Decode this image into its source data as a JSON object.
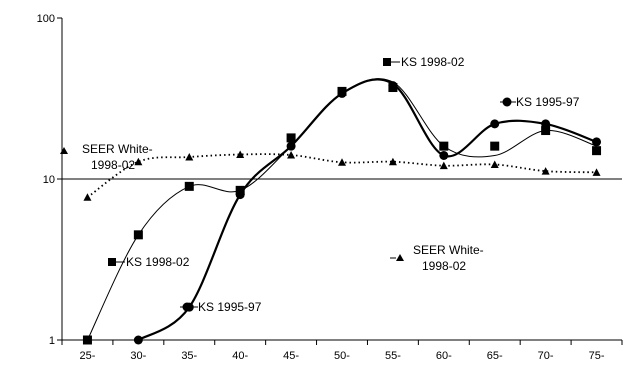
{
  "chart_data": {
    "type": "line",
    "title": "",
    "xlabel": "",
    "ylabel": "",
    "y_scale": "log",
    "ylim": [
      1,
      100
    ],
    "y_ticks": [
      1,
      10,
      100
    ],
    "y_tick_labels": [
      "1",
      "10",
      "100"
    ],
    "categories": [
      "25-",
      "30-",
      "35-",
      "40-",
      "45-",
      "50-",
      "55-",
      "60-",
      "65-",
      "70-",
      "75-"
    ],
    "grid": "horizontal line at 10",
    "legend": "none (series labelled with text annotations)",
    "series": [
      {
        "key": "ks9802_fit",
        "marker": "none",
        "line": "thin",
        "values": [
          1.0,
          4.5,
          9.0,
          8.5,
          16,
          34,
          40,
          16,
          14,
          20,
          16
        ]
      },
      {
        "key": "ks9802_obs",
        "marker": "square",
        "line": "none",
        "values": [
          1.0,
          4.5,
          9.0,
          8.5,
          18,
          35,
          37,
          16,
          16,
          20,
          15
        ]
      },
      {
        "key": "ks9597_fit",
        "marker": "none",
        "line": "thick",
        "values": [
          null,
          1.0,
          1.6,
          8.0,
          16,
          34,
          39,
          14,
          22,
          22,
          17
        ]
      },
      {
        "key": "ks9597_obs",
        "marker": "circle",
        "line": "none",
        "values": [
          null,
          1.0,
          1.6,
          8.0,
          16,
          34,
          38,
          14,
          22,
          22,
          17
        ]
      },
      {
        "key": "seer_white",
        "marker": "triangle",
        "line": "dotted",
        "values": [
          7.7,
          12.8,
          13.7,
          14.2,
          14.1,
          12.7,
          12.8,
          12.1,
          12.3,
          11.2,
          11.0
        ]
      }
    ],
    "annotations": {
      "seer_left_line1": "SEER White-",
      "seer_left_line2": "1998-02",
      "seer_right_line1": "SEER White-",
      "seer_right_line2": "1998-02",
      "ks9802_top": "KS 1998-02",
      "ks9802_left": "KS 1998-02",
      "ks9597_right": "KS 1995-97",
      "ks9597_bottom": "KS 1995-97"
    },
    "colors": {
      "axes": "#000000",
      "ks9802": "#000000",
      "ks9597": "#000000",
      "seer": "#000000",
      "marker_fill": "#000000"
    }
  }
}
